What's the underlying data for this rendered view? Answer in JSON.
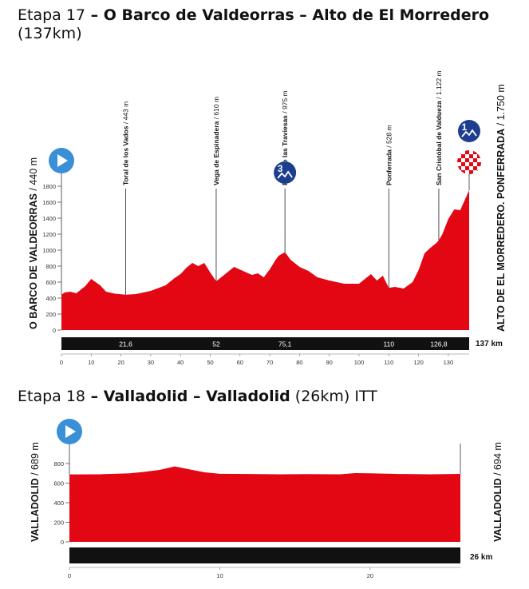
{
  "stage17": {
    "title_prefix": "Etapa 17",
    "dash1": " – ",
    "start_city": "O Barco de Valdeorras",
    "dash2": " – ",
    "finish_city": "Alto de El Morredero",
    "distance_paren": "(137km)",
    "start_label": "O BARCO DE VALDEORRAS",
    "start_alt": " / 440 m",
    "finish_label": "ALTO DE EL MORREDERO. PONFERRADA",
    "finish_alt": " / 1.750 m",
    "total_km": "137 km",
    "colors": {
      "profile": "#e30613",
      "bar": "#111111",
      "start_icon": "#3a8fd6",
      "climb_icon": "#1d3d8f"
    }
  },
  "stage18": {
    "title_prefix": "Etapa 18",
    "dash1": " – ",
    "start_city": "Valladolid",
    "dash2": " – ",
    "finish_city": "Valladolid",
    "suffix": " (26km) ITT",
    "start_label": "VALLADOLID",
    "start_alt": " / 689 m",
    "finish_label": "VALLADOLID",
    "finish_alt": " / 694 m",
    "total_km": "26 km"
  },
  "chart_data": [
    {
      "type": "area",
      "xlim": [
        0,
        137
      ],
      "ylim": [
        0,
        1800
      ],
      "y_ticks": [
        0,
        200,
        400,
        600,
        800,
        1000,
        1200,
        1400,
        1600,
        1800
      ],
      "x_ticks": [
        0,
        10,
        20,
        30,
        40,
        50,
        60,
        70,
        80,
        90,
        100,
        110,
        120,
        130
      ],
      "x": [
        0,
        1,
        3,
        5,
        8,
        10,
        13,
        15,
        18,
        21.6,
        25,
        30,
        35,
        38,
        40,
        42,
        44,
        46,
        48,
        50,
        52,
        55,
        58,
        61,
        64,
        66,
        68,
        70,
        72,
        73,
        75.1,
        77,
        80,
        83,
        86,
        90,
        95,
        100,
        102,
        104,
        106,
        108,
        110,
        112,
        115,
        118,
        120,
        122,
        124,
        126,
        126.8,
        128,
        130,
        132,
        134,
        137
      ],
      "y": [
        440,
        470,
        480,
        460,
        550,
        640,
        560,
        480,
        455,
        443,
        450,
        490,
        560,
        650,
        700,
        780,
        840,
        800,
        840,
        720,
        610,
        700,
        790,
        740,
        690,
        710,
        660,
        760,
        880,
        930,
        975,
        880,
        790,
        740,
        660,
        620,
        580,
        580,
        640,
        700,
        620,
        680,
        528,
        540,
        520,
        600,
        750,
        960,
        1030,
        1090,
        1122,
        1200,
        1390,
        1510,
        1500,
        1750
      ],
      "waypoints": [
        {
          "km": 21.6,
          "km_label": "21,6",
          "name": "Toral de los Vados",
          "alt": " / 443 m",
          "alt_m": 443
        },
        {
          "km": 52,
          "km_label": "52",
          "name": "Vega de Espinadera",
          "alt": " / 610 m",
          "alt_m": 610
        },
        {
          "km": 75.1,
          "km_label": "75,1",
          "name": "Paso de las Traviesas",
          "alt": " / 975 m",
          "alt_m": 975,
          "climb": "3"
        },
        {
          "km": 110,
          "km_label": "110",
          "name": "Ponferrada",
          "alt": " / 528 m",
          "alt_m": 528
        },
        {
          "km": 126.8,
          "km_label": "126,8",
          "name": "San Cristóbal de Valdueza",
          "alt": " / 1.122 m",
          "alt_m": 1122
        }
      ],
      "finish_climb": "1"
    },
    {
      "type": "area",
      "xlim": [
        0,
        26
      ],
      "ylim": [
        0,
        800
      ],
      "y_ticks": [
        0,
        200,
        400,
        600,
        800
      ],
      "x_ticks": [
        0,
        10,
        20
      ],
      "x": [
        0,
        2,
        4,
        5,
        6,
        7,
        8,
        9,
        10,
        12,
        14,
        16,
        18,
        19,
        20,
        22,
        24,
        26
      ],
      "y": [
        689,
        690,
        700,
        715,
        735,
        770,
        740,
        710,
        695,
        693,
        690,
        692,
        690,
        702,
        700,
        693,
        690,
        694
      ]
    }
  ]
}
